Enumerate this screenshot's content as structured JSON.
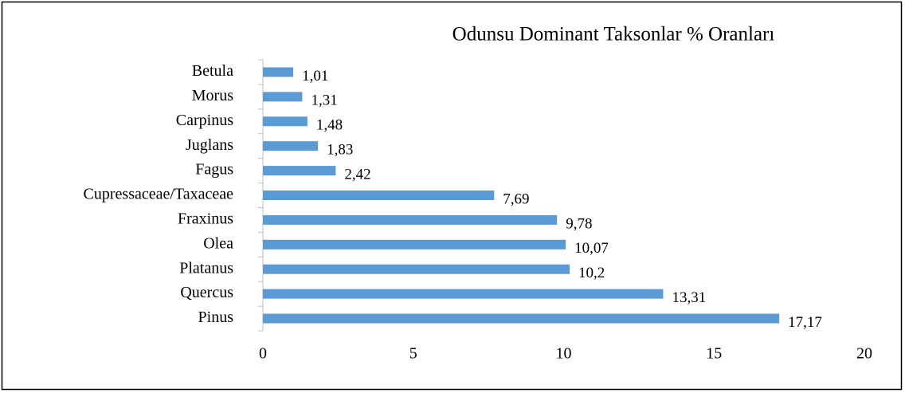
{
  "chart_data": {
    "type": "bar",
    "orientation": "horizontal",
    "title": "Odunsu Dominant Taksonlar % Oranları",
    "categories": [
      "Betula",
      "Morus",
      "Carpinus",
      "Juglans",
      "Fagus",
      "Cupressaceae/Taxaceae",
      "Fraxinus",
      "Olea",
      "Platanus",
      "Quercus",
      "Pinus"
    ],
    "values": [
      1.01,
      1.31,
      1.48,
      1.83,
      2.42,
      7.69,
      9.78,
      10.07,
      10.2,
      13.31,
      17.17
    ],
    "value_labels": [
      "1,01",
      "1,31",
      "1,48",
      "1,83",
      "2,42",
      "7,69",
      "9,78",
      "10,07",
      "10,2",
      "13,31",
      "17,17"
    ],
    "color": "#5b9bd5",
    "xlim": [
      0,
      20
    ],
    "xticks": [
      0,
      5,
      10,
      15,
      20
    ],
    "grid": false
  }
}
